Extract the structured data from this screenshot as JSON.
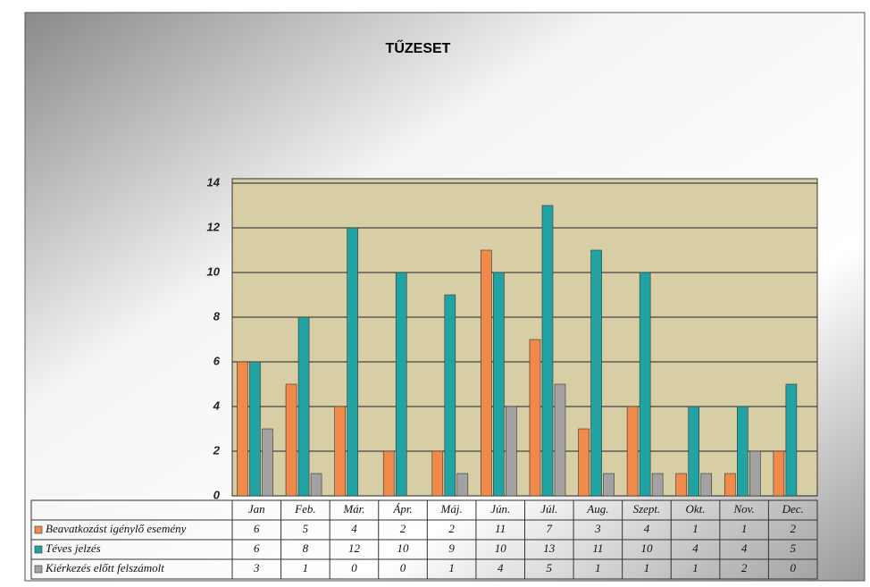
{
  "chart_data": {
    "type": "bar",
    "title": "TŰZESET",
    "categories": [
      "Jan",
      "Feb.",
      "Már.",
      "Ápr.",
      "Máj.",
      "Jún.",
      "Júl.",
      "Aug.",
      "Szept.",
      "Okt.",
      "Nov.",
      "Dec."
    ],
    "series": [
      {
        "name": "Beavatkozást igénylő esemény",
        "color": "#f08a4b",
        "values": [
          6,
          5,
          4,
          2,
          2,
          11,
          7,
          3,
          4,
          1,
          1,
          2
        ]
      },
      {
        "name": "Téves jelzés",
        "color": "#22a3a3",
        "values": [
          6,
          8,
          12,
          10,
          9,
          10,
          13,
          11,
          10,
          4,
          4,
          5
        ]
      },
      {
        "name": "Kiérkezés előtt felszámolt",
        "color": "#a2a2a2",
        "values": [
          3,
          1,
          0,
          0,
          1,
          4,
          5,
          1,
          1,
          1,
          2,
          0
        ]
      }
    ],
    "ylim": [
      0,
      14
    ],
    "yticks": [
      0,
      2,
      4,
      6,
      8,
      10,
      12,
      14
    ],
    "grid": true
  }
}
